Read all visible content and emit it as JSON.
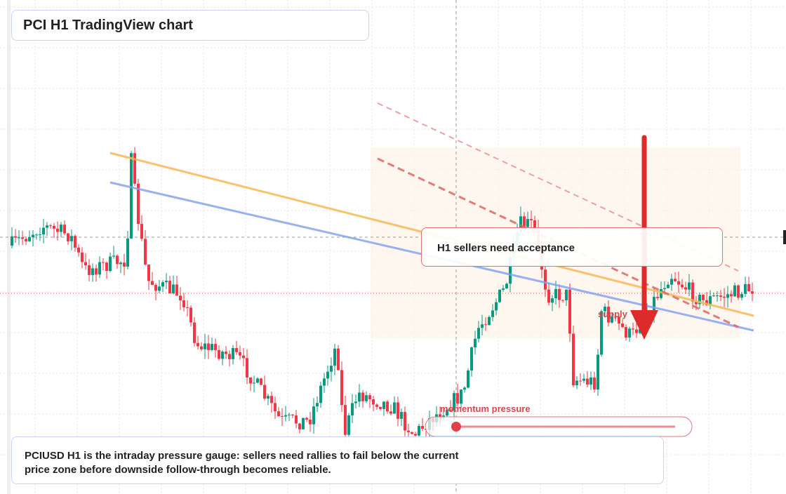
{
  "header": {
    "title": "PCI H1 TradingView chart"
  },
  "annotations": {
    "callout": "H1 sellers need acceptance",
    "zone_label": "supply",
    "gauge_label": "momentum pressure"
  },
  "caption": {
    "lines": [
      "PCIUSD H1 is the intraday pressure gauge: sellers need rallies to fail below the current",
      "price zone before downside follow-through becomes reliable."
    ]
  }
}
